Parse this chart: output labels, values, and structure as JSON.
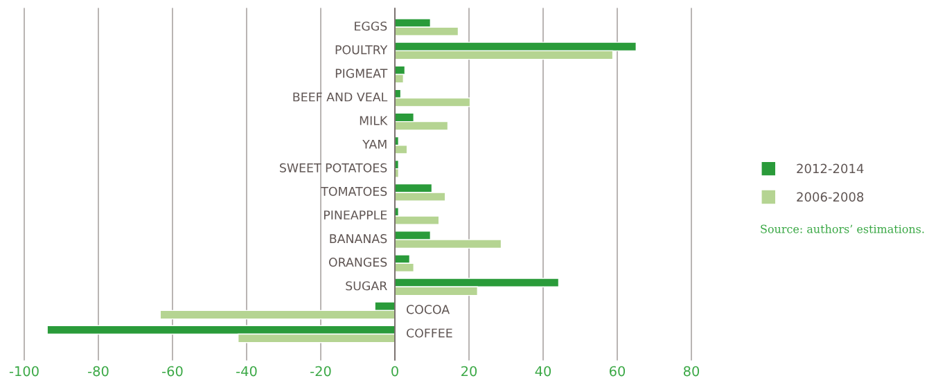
{
  "chart_data": {
    "type": "bar",
    "orientation": "horizontal",
    "categories": [
      "EGGS",
      "POULTRY",
      "PIGMEAT",
      "BEEF AND VEAL",
      "MILK",
      "YAM",
      "SWEET POTATOES",
      "TOMATOES",
      "PINEAPPLE",
      "BANANAS",
      "ORANGES",
      "SUGAR",
      "COCOA",
      "COFFEE"
    ],
    "series": [
      {
        "name": "2012-2014",
        "color": "#2a9b3a",
        "values": [
          9.6,
          65.1,
          2.7,
          1.6,
          5.1,
          1.0,
          1.0,
          10.0,
          1.0,
          9.6,
          4.0,
          44.2,
          -5.4,
          -93.8
        ]
      },
      {
        "name": "2006-2008",
        "color": "#b5d492",
        "values": [
          17.1,
          58.8,
          2.3,
          20.3,
          14.3,
          3.3,
          1.0,
          13.6,
          11.9,
          28.7,
          5.1,
          22.3,
          -63.3,
          -42.3
        ]
      }
    ],
    "xlim": [
      -100,
      80
    ],
    "xticks": [
      -100,
      -80,
      -60,
      -40,
      -20,
      0,
      20,
      40,
      60,
      80
    ],
    "grid": "x",
    "legend": "right",
    "tick_labels": "x",
    "annotations": [
      "Source: authors’ estimations."
    ]
  }
}
